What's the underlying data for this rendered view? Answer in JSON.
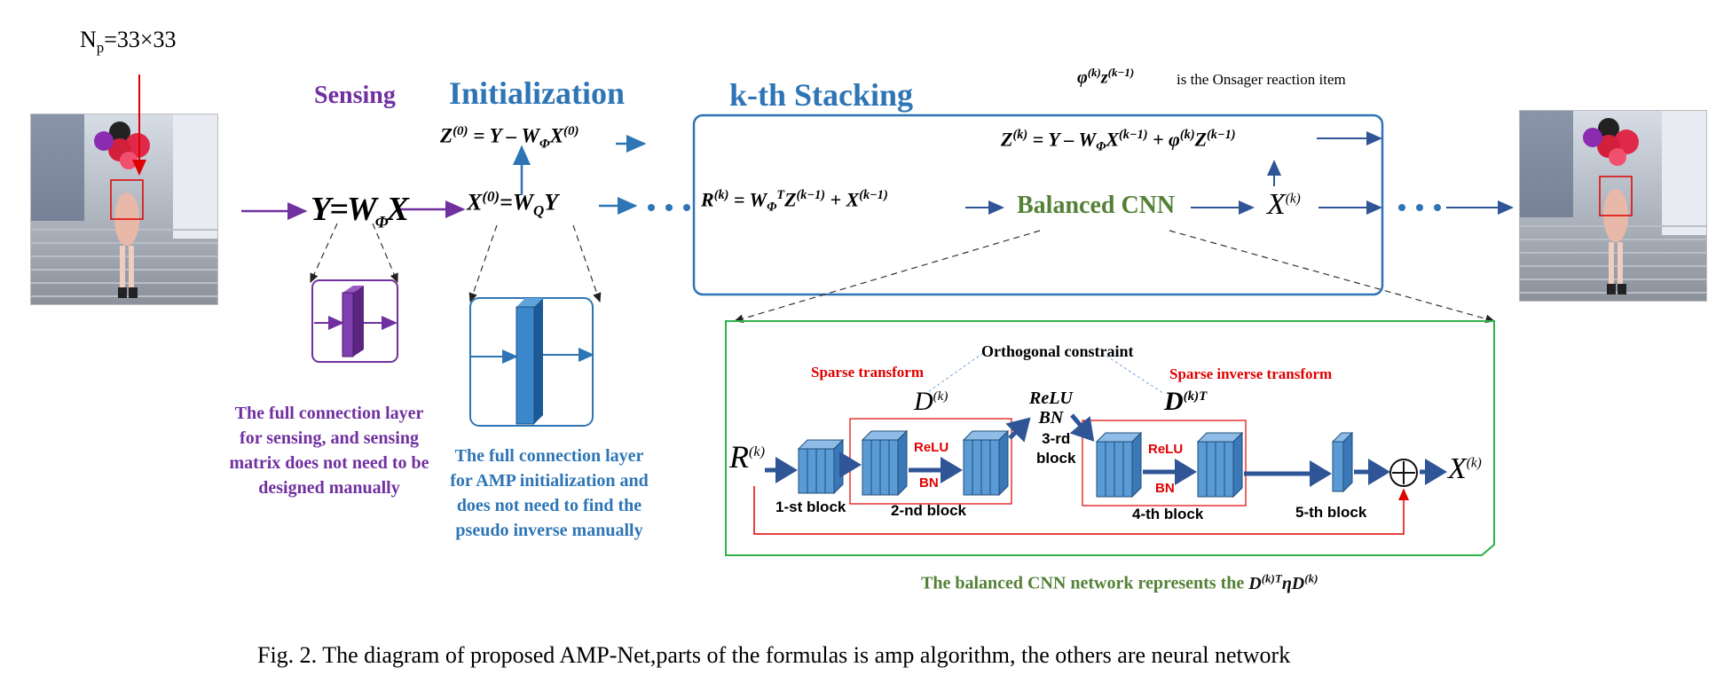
{
  "np_label": "N",
  "np_sub": "p",
  "np_value": "=33×33",
  "sensing_title": "Sensing",
  "init_title": "Initialization",
  "stacking_title": "k-th Stacking",
  "onsager_note": "is the Onsager reaction item",
  "sensing_desc": [
    "The full connection layer",
    "for sensing, and sensing",
    "matrix does not need to be",
    "designed manually"
  ],
  "init_desc": [
    "The full connection layer",
    "for AMP initialization and",
    "does not need to find the",
    "pseudo inverse manually"
  ],
  "balanced_cnn_label": "Balanced CNN",
  "orthogonal_label": "Orthogonal constraint",
  "sparse_transform_label": "Sparse transform",
  "sparse_inverse_label": "Sparse inverse transform",
  "relu_label": "ReLU",
  "bn_label": "BN",
  "relu_bn_relu": "ReLU",
  "relu_bn_bn": "BN",
  "block_labels": [
    "1-st block",
    "2-nd block",
    "3-rd",
    "block",
    "4-th block",
    "5-th block"
  ],
  "balanced_note": "The balanced CNN network represents the",
  "caption": "Fig. 2.  The diagram of proposed AMP-Net,parts of the formulas is amp algorithm, the others are neural network",
  "colors": {
    "purple": "#7030a0",
    "blue": "#2e75b6",
    "green": "#538135",
    "red": "#e00000",
    "navy": "#2f5597",
    "block": "#5b9bd5"
  }
}
